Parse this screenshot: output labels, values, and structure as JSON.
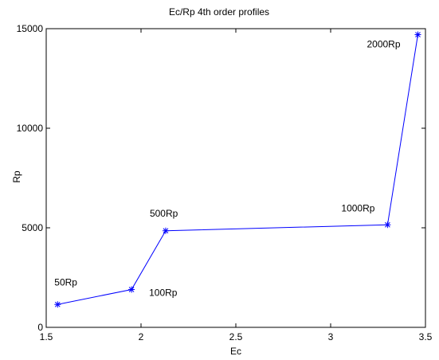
{
  "chart_data": {
    "type": "line",
    "title": "Ec/Rp 4th order profiles",
    "xlabel": "Ec",
    "ylabel": "Rp",
    "xlim": [
      1.5,
      3.5
    ],
    "ylim": [
      0,
      15000
    ],
    "xticks": [
      "1.5",
      "2",
      "2.5",
      "3",
      "3.5"
    ],
    "yticks": [
      "0",
      "5000",
      "10000",
      "15000"
    ],
    "grid": false,
    "series": [
      {
        "x": [
          1.56,
          1.95,
          2.13,
          3.3,
          3.46
        ],
        "y": [
          1150,
          1900,
          4850,
          5150,
          14700
        ],
        "color": "#0000ff",
        "marker": "asterisk"
      }
    ],
    "annotations": [
      "50Rp",
      "100Rp",
      "500Rp",
      "1000Rp",
      "2000Rp"
    ]
  }
}
